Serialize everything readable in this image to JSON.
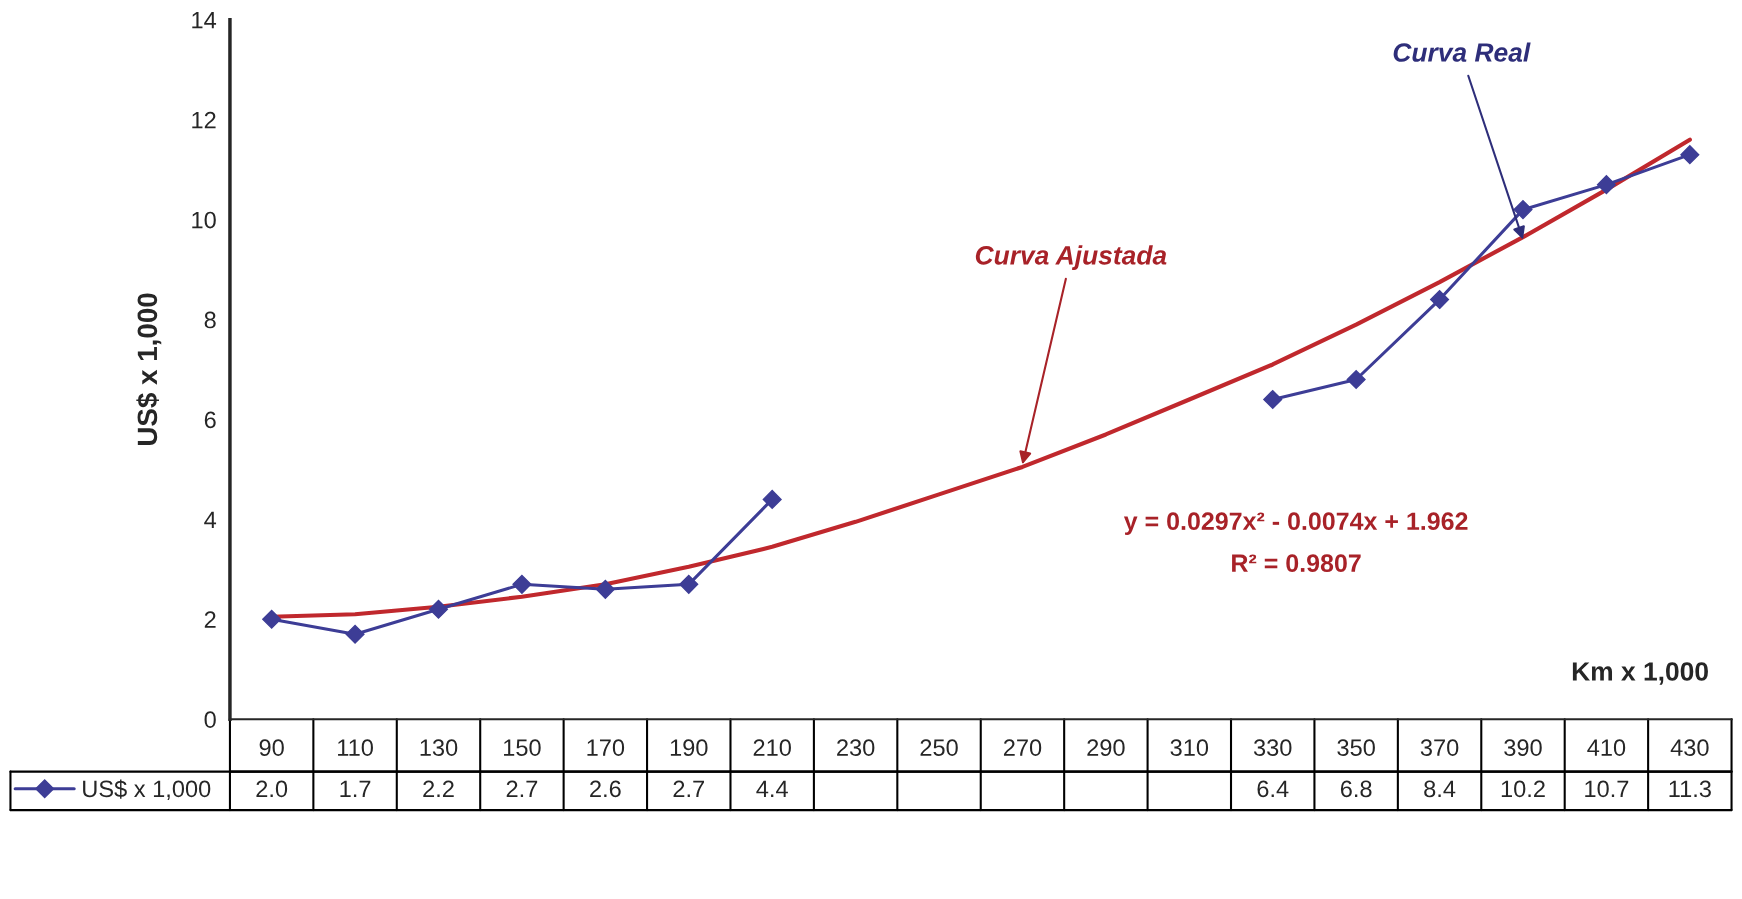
{
  "chart_data": {
    "type": "line",
    "ylabel": "US$ x 1,000",
    "xlabel": "Km x 1,000",
    "categories": [
      "90",
      "110",
      "130",
      "150",
      "170",
      "190",
      "210",
      "230",
      "250",
      "270",
      "290",
      "310",
      "330",
      "350",
      "370",
      "390",
      "410",
      "430"
    ],
    "series": [
      {
        "name": "US$ x 1,000",
        "color": "#3d3d96",
        "marker": "diamond",
        "values": [
          2.0,
          1.7,
          2.2,
          2.7,
          2.6,
          2.7,
          4.4,
          null,
          null,
          null,
          null,
          null,
          6.4,
          6.8,
          8.4,
          10.2,
          10.7,
          11.3
        ],
        "value_labels": [
          "2.0",
          "1.7",
          "2.2",
          "2.7",
          "2.6",
          "2.7",
          "4.4",
          null,
          null,
          null,
          null,
          null,
          "6.4",
          "6.8",
          "8.4",
          "10.2",
          "10.7",
          "11.3"
        ]
      },
      {
        "type": "line",
        "color": "#c0282d",
        "marker": "none",
        "x": [
          "90",
          "110",
          "130",
          "150",
          "170",
          "190",
          "210",
          "230",
          "250",
          "270",
          "290",
          "310",
          "330",
          "350",
          "370",
          "390",
          "410",
          "430"
        ],
        "values": [
          2.05,
          2.1,
          2.25,
          2.45,
          2.7,
          3.05,
          3.45,
          3.95,
          4.5,
          5.05,
          5.7,
          6.4,
          7.1,
          7.9,
          8.75,
          9.65,
          10.6,
          11.6
        ]
      }
    ],
    "ylim": [
      0,
      14
    ],
    "yticks": [
      0,
      2,
      4,
      6,
      8,
      10,
      12,
      14
    ],
    "legend": "bottom left",
    "grid": false,
    "annotations": [
      {
        "text": "Curva Real",
        "x": "390",
        "y": 9.6
      },
      {
        "text": "Curva Ajustada",
        "x": "270",
        "y": 5.1
      },
      "y = 0.0297x² - 0.0074x + 1.962",
      "R² = 0.9807"
    ]
  }
}
